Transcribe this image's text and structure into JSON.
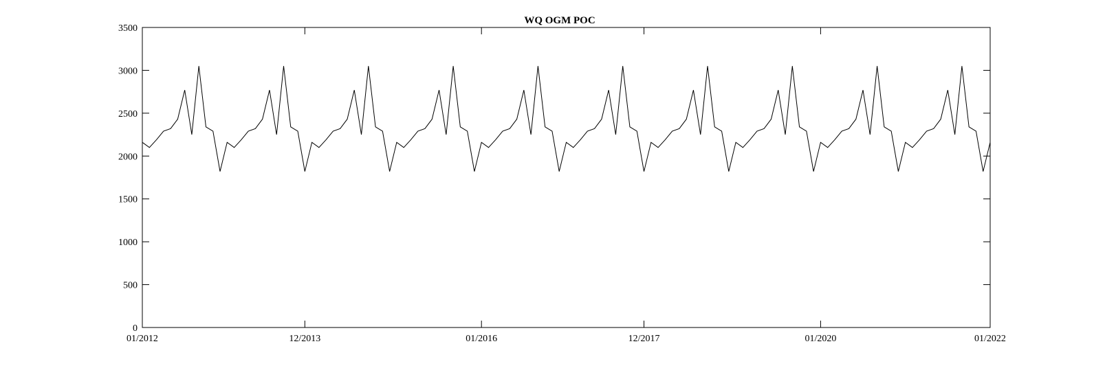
{
  "chart_data": {
    "type": "line",
    "title": "WQ OGM POC",
    "xlabel": "",
    "ylabel": "",
    "ylim": [
      0,
      3500
    ],
    "yticks": [
      0,
      500,
      1000,
      1500,
      2000,
      2500,
      3000,
      3500
    ],
    "xlim": [
      "2012-01",
      "2022-01"
    ],
    "xticks": [
      {
        "date": "2012-01",
        "label": "01/2012"
      },
      {
        "date": "2013-12",
        "label": "12/2013"
      },
      {
        "date": "2016-01",
        "label": "01/2016"
      },
      {
        "date": "2017-12",
        "label": "12/2017"
      },
      {
        "date": "2020-01",
        "label": "01/2020"
      },
      {
        "date": "2022-01",
        "label": "01/2022"
      }
    ],
    "grid": false,
    "line_color": "#000000",
    "series": [
      {
        "x": [
          "2012-01",
          "2012-02",
          "2012-03",
          "2012-04",
          "2012-05",
          "2012-06",
          "2012-07",
          "2012-08",
          "2012-09",
          "2012-10",
          "2012-11",
          "2012-12",
          "2013-01",
          "2013-02",
          "2013-03",
          "2013-04",
          "2013-05",
          "2013-06",
          "2013-07",
          "2013-08",
          "2013-09",
          "2013-10",
          "2013-11",
          "2013-12",
          "2014-01",
          "2014-02",
          "2014-03",
          "2014-04",
          "2014-05",
          "2014-06",
          "2014-07",
          "2014-08",
          "2014-09",
          "2014-10",
          "2014-11",
          "2014-12",
          "2015-01",
          "2015-02",
          "2015-03",
          "2015-04",
          "2015-05",
          "2015-06",
          "2015-07",
          "2015-08",
          "2015-09",
          "2015-10",
          "2015-11",
          "2015-12",
          "2016-01",
          "2016-02",
          "2016-03",
          "2016-04",
          "2016-05",
          "2016-06",
          "2016-07",
          "2016-08",
          "2016-09",
          "2016-10",
          "2016-11",
          "2016-12",
          "2017-01",
          "2017-02",
          "2017-03",
          "2017-04",
          "2017-05",
          "2017-06",
          "2017-07",
          "2017-08",
          "2017-09",
          "2017-10",
          "2017-11",
          "2017-12",
          "2018-01",
          "2018-02",
          "2018-03",
          "2018-04",
          "2018-05",
          "2018-06",
          "2018-07",
          "2018-08",
          "2018-09",
          "2018-10",
          "2018-11",
          "2018-12",
          "2019-01",
          "2019-02",
          "2019-03",
          "2019-04",
          "2019-05",
          "2019-06",
          "2019-07",
          "2019-08",
          "2019-09",
          "2019-10",
          "2019-11",
          "2019-12",
          "2020-01",
          "2020-02",
          "2020-03",
          "2020-04",
          "2020-05",
          "2020-06",
          "2020-07",
          "2020-08",
          "2020-09",
          "2020-10",
          "2020-11",
          "2020-12",
          "2021-01",
          "2021-02",
          "2021-03",
          "2021-04",
          "2021-05",
          "2021-06",
          "2021-07",
          "2021-08",
          "2021-09",
          "2021-10",
          "2021-11",
          "2021-12",
          "2022-01"
        ],
        "values": [
          2160,
          2100,
          2190,
          2290,
          2320,
          2430,
          2770,
          2250,
          3050,
          2340,
          2290,
          1820,
          2160,
          2100,
          2190,
          2290,
          2320,
          2430,
          2770,
          2250,
          3050,
          2340,
          2290,
          1820,
          2160,
          2100,
          2190,
          2290,
          2320,
          2430,
          2770,
          2250,
          3050,
          2340,
          2290,
          1820,
          2160,
          2100,
          2190,
          2290,
          2320,
          2430,
          2770,
          2250,
          3050,
          2340,
          2290,
          1820,
          2160,
          2100,
          2190,
          2290,
          2320,
          2430,
          2770,
          2250,
          3050,
          2340,
          2290,
          1820,
          2160,
          2100,
          2190,
          2290,
          2320,
          2430,
          2770,
          2250,
          3050,
          2340,
          2290,
          1820,
          2160,
          2100,
          2190,
          2290,
          2320,
          2430,
          2770,
          2250,
          3050,
          2340,
          2290,
          1820,
          2160,
          2100,
          2190,
          2290,
          2320,
          2430,
          2770,
          2250,
          3050,
          2340,
          2290,
          1820,
          2160,
          2100,
          2190,
          2290,
          2320,
          2430,
          2770,
          2250,
          3050,
          2340,
          2290,
          1820,
          2160,
          2100,
          2190,
          2290,
          2320,
          2430,
          2770,
          2250,
          3050,
          2340,
          2290,
          1820,
          2160
        ]
      }
    ]
  }
}
